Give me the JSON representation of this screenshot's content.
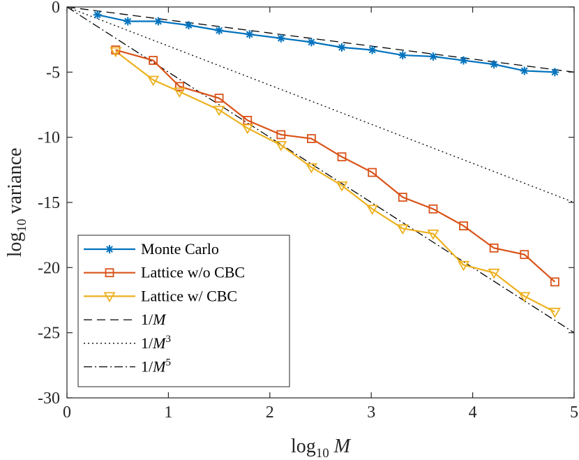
{
  "chart_data": {
    "type": "line",
    "title": "",
    "xlabel": {
      "prefix": "log",
      "sub": "10",
      "var": "M"
    },
    "ylabel": {
      "prefix": "log",
      "sub": "10",
      "rest": "variance"
    },
    "xlim": [
      0,
      5
    ],
    "ylim": [
      -30,
      0
    ],
    "x_ticks": [
      0,
      1,
      2,
      3,
      4,
      5
    ],
    "x_tick_labels": [
      "0",
      "1",
      "2",
      "3",
      "4",
      "5"
    ],
    "y_ticks": [
      0,
      -5,
      -10,
      -15,
      -20,
      -25,
      -30
    ],
    "y_tick_labels": [
      "0",
      "-5",
      "-10",
      "-15",
      "-20",
      "-25",
      "-30"
    ],
    "grid": false,
    "legend_position": "bottom-left",
    "series": [
      {
        "name": "Monte Carlo",
        "color": "#0072BD",
        "marker": "asterisk",
        "line": "solid",
        "x": [
          0.3,
          0.6,
          0.9,
          1.2,
          1.5,
          1.8,
          2.11,
          2.41,
          2.71,
          3.01,
          3.31,
          3.61,
          3.91,
          4.21,
          4.51,
          4.81
        ],
        "y": [
          -0.6,
          -1.1,
          -1.1,
          -1.4,
          -1.8,
          -2.1,
          -2.4,
          -2.7,
          -3.1,
          -3.3,
          -3.7,
          -3.8,
          -4.1,
          -4.4,
          -4.9,
          -5.0
        ]
      },
      {
        "name": "Lattice w/o CBC",
        "color": "#D95319",
        "marker": "square",
        "line": "solid",
        "x": [
          0.48,
          0.85,
          1.11,
          1.5,
          1.78,
          2.11,
          2.41,
          2.71,
          3.01,
          3.31,
          3.61,
          3.91,
          4.21,
          4.51,
          4.81
        ],
        "y": [
          -3.3,
          -4.1,
          -6.1,
          -7.0,
          -8.7,
          -9.8,
          -10.1,
          -11.5,
          -12.7,
          -14.6,
          -15.5,
          -16.8,
          -18.5,
          -19.0,
          -21.1
        ]
      },
      {
        "name": "Lattice w/ CBC",
        "color": "#EDB120",
        "marker": "triangle-down",
        "line": "solid",
        "x": [
          0.48,
          0.85,
          1.11,
          1.5,
          1.78,
          2.11,
          2.41,
          2.71,
          3.01,
          3.31,
          3.61,
          3.91,
          4.21,
          4.51,
          4.81
        ],
        "y": [
          -3.4,
          -5.6,
          -6.5,
          -7.9,
          -9.3,
          -10.6,
          -12.3,
          -13.7,
          -15.5,
          -17.0,
          -17.4,
          -19.8,
          -20.4,
          -22.2,
          -23.4
        ]
      },
      {
        "name": "1/M",
        "legend_label": {
          "base": "1/M",
          "sup": ""
        },
        "color": "#000000",
        "line": "dashed",
        "slope": -1
      },
      {
        "name": "1/M^3",
        "legend_label": {
          "base": "1/M",
          "sup": "3"
        },
        "color": "#000000",
        "line": "dotted",
        "slope": -3
      },
      {
        "name": "1/M^5",
        "legend_label": {
          "base": "1/M",
          "sup": "5"
        },
        "color": "#000000",
        "line": "dashdot",
        "slope": -5
      }
    ]
  }
}
